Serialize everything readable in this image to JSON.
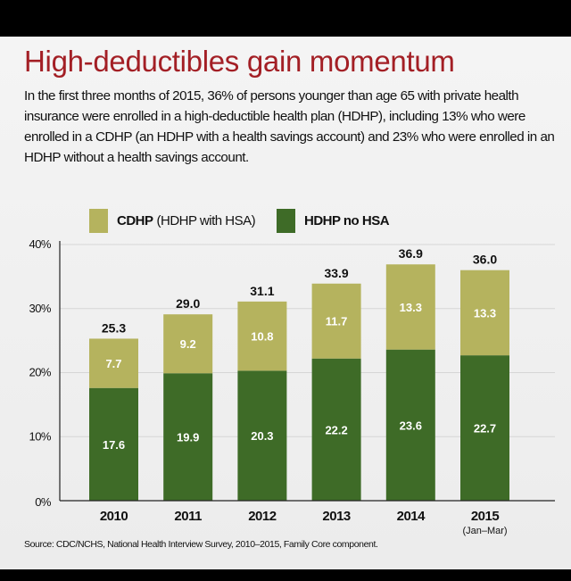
{
  "title": "High-deductibles gain momentum",
  "subtitle": "In the first three months of 2015, 36% of persons younger than age 65 with private health insurance were enrolled in a high-deductible health plan (HDHP), including 13% who were enrolled in a CDHP (an HDHP with a health savings account) and 23% who were enrolled in an HDHP without a health savings account.",
  "legend": [
    {
      "bold": "CDHP",
      "rest": "(HDHP with HSA)",
      "color": "#b5b35e"
    },
    {
      "bold": "HDHP no HSA",
      "rest": "",
      "color": "#3e6b27"
    }
  ],
  "source": "Source: CDC/NCHS, National Health Interview Survey, 2010–2015, Family Core component.",
  "chart_data": {
    "type": "bar",
    "stacked": true,
    "categories": [
      "2010",
      "2011",
      "2012",
      "2013",
      "2014",
      "2015"
    ],
    "category_sublabels": [
      "",
      "",
      "",
      "",
      "",
      "(Jan–Mar)"
    ],
    "series": [
      {
        "name": "HDHP no HSA",
        "values": [
          17.6,
          19.9,
          20.3,
          22.2,
          23.6,
          22.7
        ],
        "color": "#3e6b27"
      },
      {
        "name": "CDHP (HDHP with HSA)",
        "values": [
          7.7,
          9.2,
          10.8,
          11.7,
          13.3,
          13.3
        ],
        "color": "#b5b35e"
      }
    ],
    "totals": [
      "25.3",
      "29.0",
      "31.1",
      "33.9",
      "36.9",
      "36.0"
    ],
    "yticks": [
      "0%",
      "10%",
      "20%",
      "30%",
      "40%"
    ],
    "ylim": [
      0,
      40
    ],
    "grid": true
  }
}
